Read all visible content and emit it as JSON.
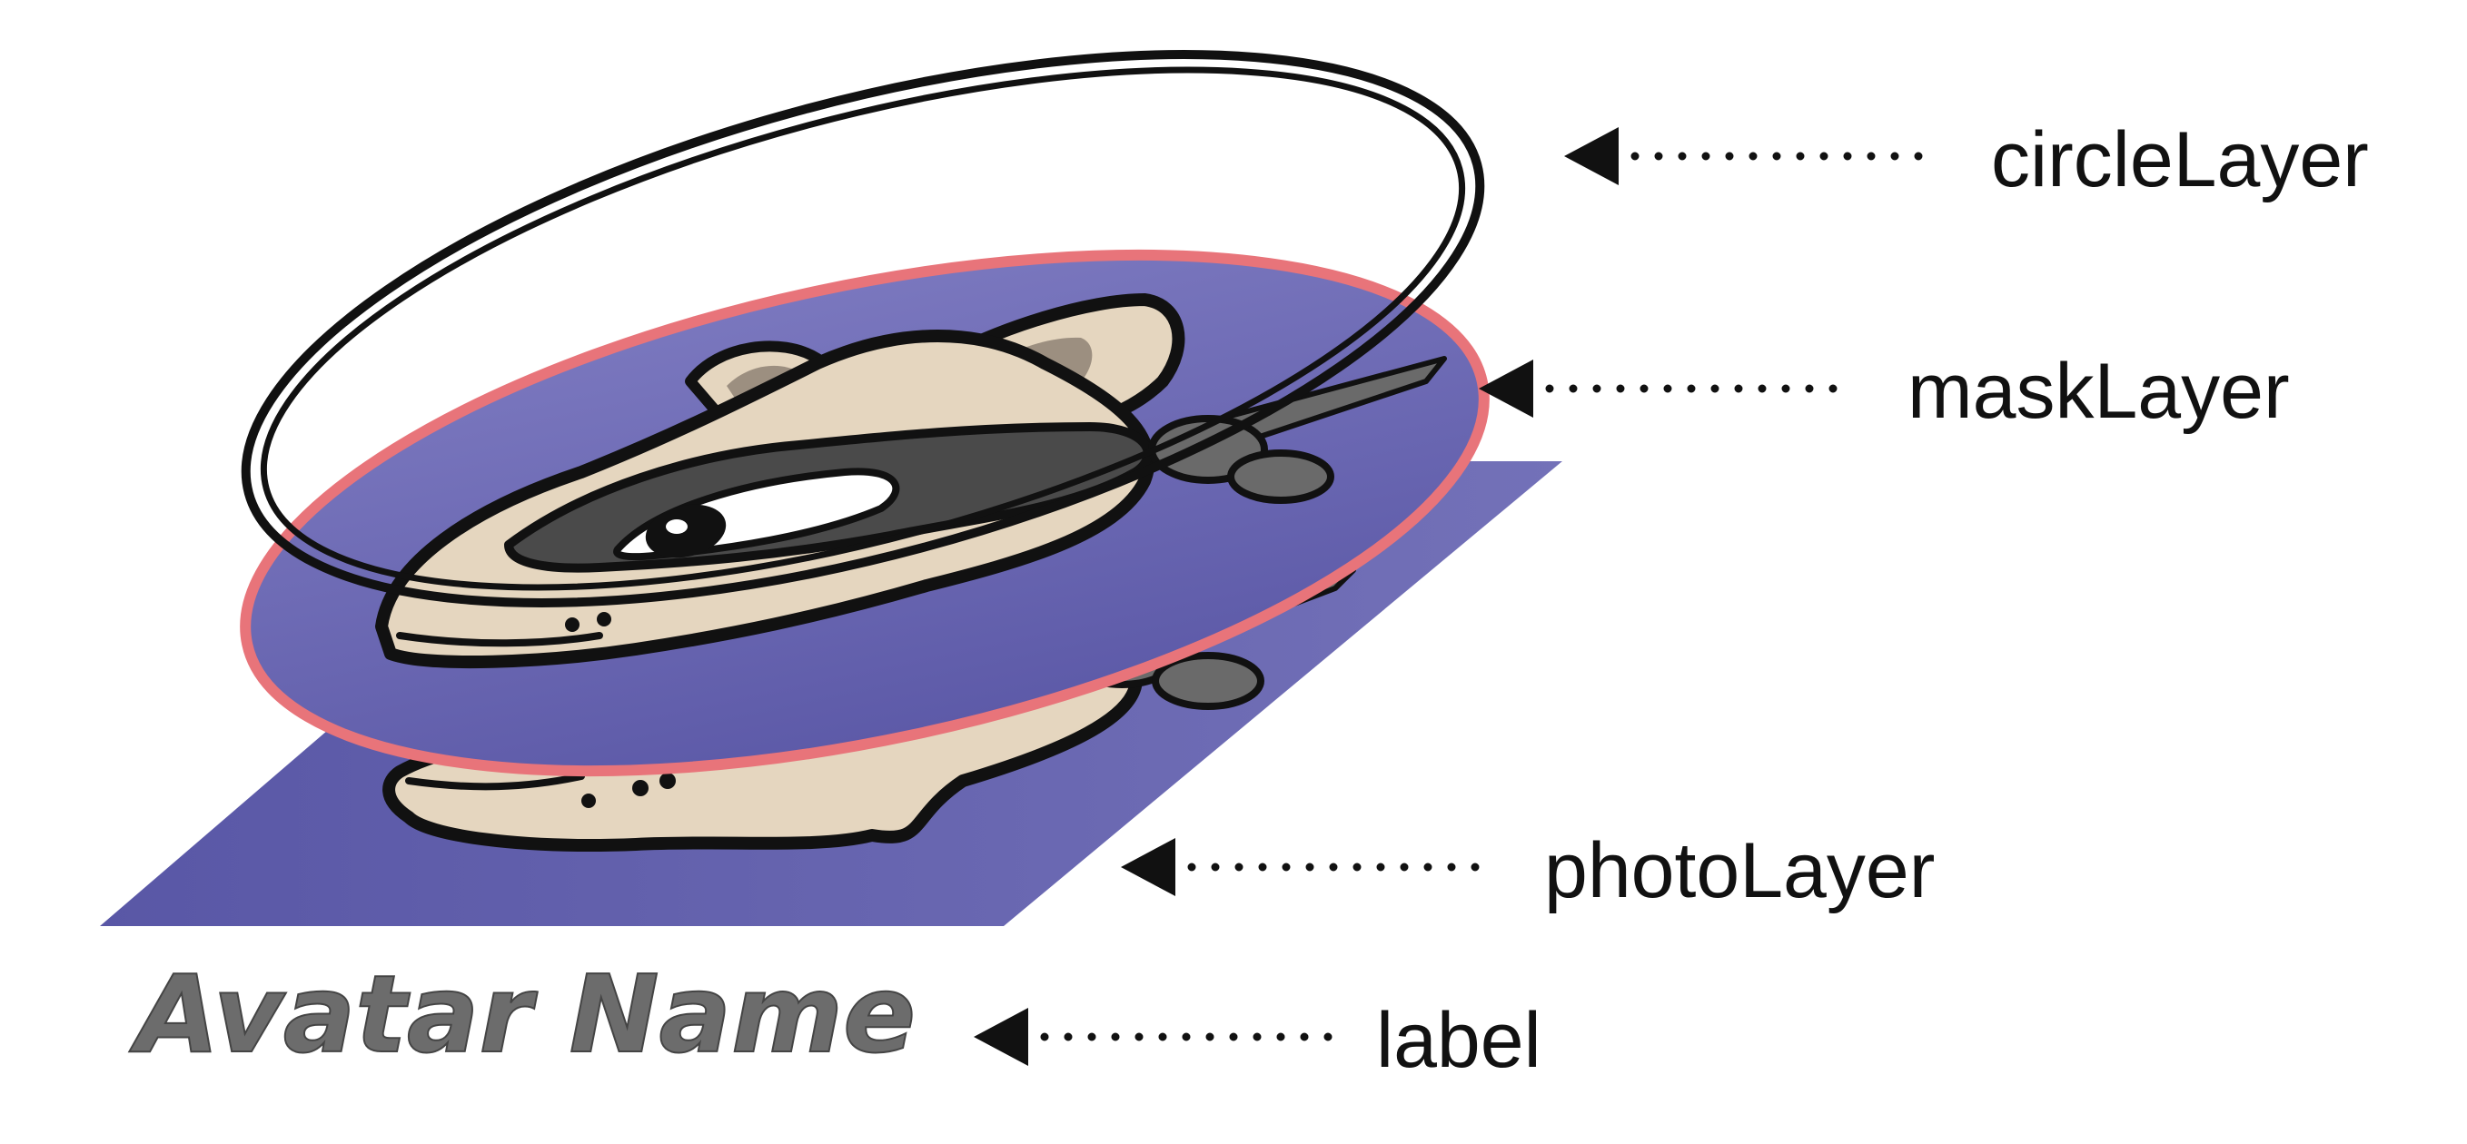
{
  "layers": [
    {
      "id": "circle",
      "label": "circleLayer"
    },
    {
      "id": "mask",
      "label": "maskLayer"
    },
    {
      "id": "photo",
      "label": "photoLayer"
    },
    {
      "id": "label",
      "label": "label"
    }
  ],
  "avatar_name": "Avatar Name",
  "colors": {
    "photo_fill": "#6664ad",
    "mask_fill": "#6e6bb6",
    "mask_outline": "#e8747a",
    "circle_outline": "#111111",
    "skin": "#e5d6bf",
    "mask_band": "#4a4a4a",
    "ear_inner": "#9c8f80",
    "whisker": "#6a6a6a",
    "text": "#111111"
  }
}
